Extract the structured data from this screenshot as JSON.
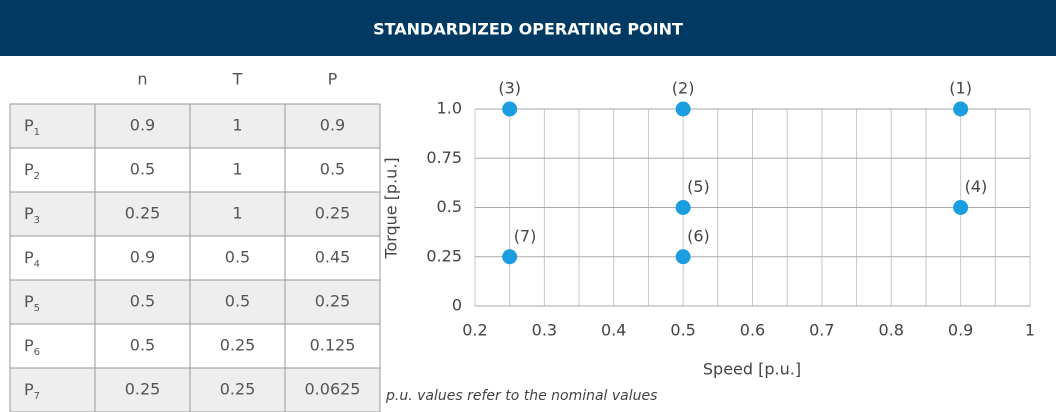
{
  "header": {
    "title": "STANDARDIZED OPERATING POINT"
  },
  "table": {
    "columns": [
      "n",
      "T",
      "P"
    ],
    "rows": [
      {
        "label": "P",
        "sub": "1",
        "cells": [
          "0.9",
          "1",
          "0.9"
        ]
      },
      {
        "label": "P",
        "sub": "2",
        "cells": [
          "0.5",
          "1",
          "0.5"
        ]
      },
      {
        "label": "P",
        "sub": "3",
        "cells": [
          "0.25",
          "1",
          "0.25"
        ]
      },
      {
        "label": "P",
        "sub": "4",
        "cells": [
          "0.9",
          "0.5",
          "0.45"
        ]
      },
      {
        "label": "P",
        "sub": "5",
        "cells": [
          "0.5",
          "0.5",
          "0.25"
        ]
      },
      {
        "label": "P",
        "sub": "6",
        "cells": [
          "0.5",
          "0.25",
          "0.125"
        ]
      },
      {
        "label": "P",
        "sub": "7",
        "cells": [
          "0.25",
          "0.25",
          "0.0625"
        ]
      }
    ]
  },
  "chart_data": {
    "type": "scatter",
    "x_label": "Speed [p.u.]",
    "y_label": "Torque [p.u.]",
    "x": [
      0.9,
      0.5,
      0.25,
      0.9,
      0.5,
      0.5,
      0.25
    ],
    "values": [
      1,
      1,
      1,
      0.5,
      0.5,
      0.25,
      0.25
    ],
    "point_labels": [
      "(1)",
      "(2)",
      "(3)",
      "(4)",
      "(5)",
      "(6)",
      "(7)"
    ],
    "color": "#1a9ee0",
    "xlim": [
      0.2,
      1
    ],
    "ylim": [
      0,
      1
    ],
    "xticks": [
      0.2,
      0.3,
      0.4,
      0.5,
      0.6,
      0.7,
      0.8,
      0.9,
      1
    ],
    "xminorticks": [
      0.25,
      0.35,
      0.45,
      0.55,
      0.65,
      0.75,
      0.85,
      0.95
    ],
    "yticks": [
      0,
      0.25,
      0.5,
      0.75,
      {
        "value": 1,
        "label": "1.0"
      }
    ],
    "grid": true,
    "note": "p.u. values refer to the nominal values"
  }
}
